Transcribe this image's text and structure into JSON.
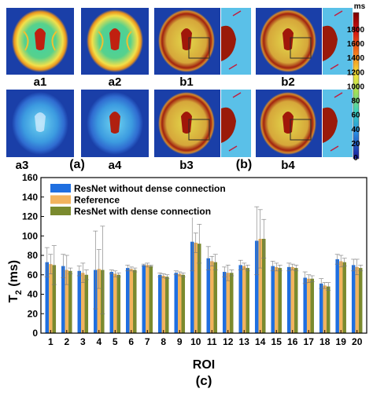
{
  "colors": {
    "resnet_no_dense": "#1f6fe0",
    "reference": "#f2b35e",
    "resnet_dense": "#7a8a2e",
    "map_background": "#1a3fa8"
  },
  "labels": {
    "a1": "a1",
    "a2": "a2",
    "a3": "a3",
    "a4": "a4",
    "b1": "b1",
    "b2": "b2",
    "b3": "b3",
    "b4": "b4",
    "group_a": "(a)",
    "group_b": "(b)",
    "group_c": "(c)"
  },
  "colorbar": {
    "unit": "ms",
    "ticks": [
      "1800",
      "1600",
      "1400",
      "1200",
      "1000",
      "80",
      "60",
      "40",
      "20",
      "0"
    ]
  },
  "chart_data": {
    "type": "bar",
    "ylabel_main": "T",
    "ylabel_sub": "2",
    "ylabel_rest": " (ms)",
    "xlabel": "ROI",
    "ylim": [
      0,
      160
    ],
    "yticks": [
      "0",
      "20",
      "40",
      "60",
      "80",
      "100",
      "120",
      "140",
      "160"
    ],
    "categories": [
      "1",
      "2",
      "3",
      "4",
      "5",
      "6",
      "7",
      "8",
      "9",
      "10",
      "11",
      "12",
      "13",
      "14",
      "15",
      "16",
      "17",
      "18",
      "19",
      "20"
    ],
    "legend_position": "top-left",
    "series": [
      {
        "name": "ResNet without dense connection",
        "values": [
          73,
          69,
          64,
          65,
          63,
          67,
          70,
          60,
          62,
          94,
          77,
          63,
          70,
          95,
          69,
          68,
          57,
          51,
          76,
          70
        ],
        "errors": [
          15,
          12,
          5,
          40,
          2,
          3,
          1,
          2,
          2,
          30,
          12,
          5,
          5,
          35,
          5,
          4,
          6,
          5,
          5,
          6
        ]
      },
      {
        "name": "Reference",
        "values": [
          71,
          65,
          62,
          66,
          61,
          66,
          70,
          59,
          61,
          93,
          74,
          62,
          69,
          97,
          68,
          68,
          56,
          49,
          74,
          68
        ],
        "errors": [
          10,
          15,
          10,
          20,
          3,
          2,
          2,
          2,
          2,
          10,
          5,
          8,
          3,
          30,
          4,
          3,
          4,
          3,
          6,
          8
        ]
      },
      {
        "name": "ResNet with dense connection",
        "values": [
          70,
          64,
          60,
          65,
          60,
          65,
          69,
          58,
          60,
          92,
          73,
          62,
          67,
          97,
          67,
          67,
          56,
          48,
          73,
          67
        ],
        "errors": [
          20,
          3,
          5,
          45,
          2,
          2,
          1,
          2,
          2,
          20,
          8,
          3,
          3,
          20,
          3,
          3,
          3,
          4,
          4,
          3
        ]
      }
    ]
  }
}
